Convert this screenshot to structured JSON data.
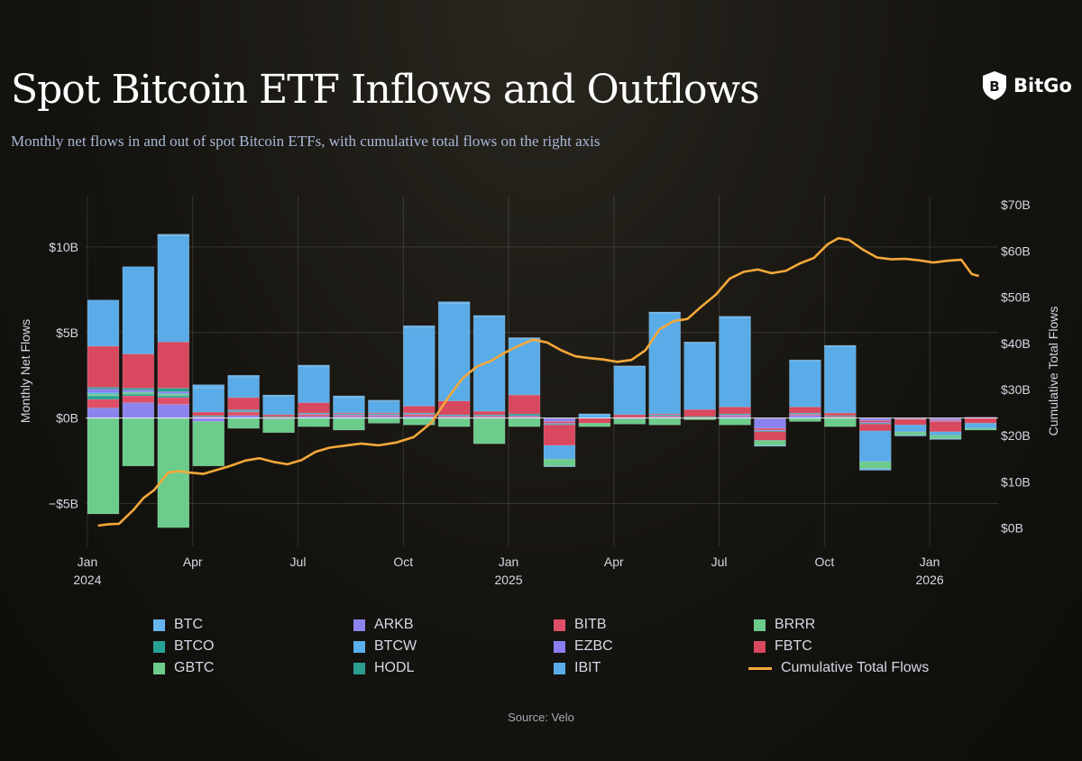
{
  "header": {
    "title": "Spot Bitcoin ETF Inflows and Outflows",
    "subtitle": "Monthly net flows in and out of spot Bitcoin ETFs, with cumulative total flows on the right axis",
    "logo_text": "BitGo"
  },
  "source": "Source: Velo",
  "colors": {
    "BTC": "#67b5ee",
    "ARKB": "#8c84ee",
    "BITB": "#df4f67",
    "BRRR": "#6ccc8c",
    "BTCO": "#28a296",
    "BTCW": "#5ab0ec",
    "EZBC": "#8a7ef0",
    "FBTC": "#d8485e",
    "GBTC": "#6ccc8c",
    "HODL": "#2a9d8f",
    "IBIT": "#5aace8",
    "cumulative": "#f4a83a"
  },
  "chart_data": {
    "type": "bar",
    "stacked": true,
    "title": "Spot Bitcoin ETF Inflows and Outflows",
    "ylabel": "Monthly Net Flows",
    "y2label": "Cumulative Total Flows",
    "ylim": [
      -7.5,
      13.0
    ],
    "y2lim": [
      -4.0,
      72.0
    ],
    "yticks": [
      {
        "v": 10,
        "label": "$10B"
      },
      {
        "v": 5,
        "label": "$5B"
      },
      {
        "v": 0,
        "label": "$0B"
      },
      {
        "v": -5,
        "label": "−$5B"
      }
    ],
    "y2ticks": [
      {
        "v": 70,
        "label": "$70B"
      },
      {
        "v": 60,
        "label": "$60B"
      },
      {
        "v": 50,
        "label": "$50B"
      },
      {
        "v": 40,
        "label": "$40B"
      },
      {
        "v": 30,
        "label": "$30B"
      },
      {
        "v": 20,
        "label": "$20B"
      },
      {
        "v": 10,
        "label": "$10B"
      },
      {
        "v": 0,
        "label": "$0B"
      }
    ],
    "xticks": [
      {
        "m": 0,
        "line1": "Jan",
        "line2": "2024"
      },
      {
        "m": 3,
        "line1": "Apr",
        "line2": ""
      },
      {
        "m": 6,
        "line1": "Jul",
        "line2": ""
      },
      {
        "m": 9,
        "line1": "Oct",
        "line2": ""
      },
      {
        "m": 12,
        "line1": "Jan",
        "line2": "2025"
      },
      {
        "m": 15,
        "line1": "Apr",
        "line2": ""
      },
      {
        "m": 18,
        "line1": "Jul",
        "line2": ""
      },
      {
        "m": 21,
        "line1": "Oct",
        "line2": ""
      },
      {
        "m": 24,
        "line1": "Jan",
        "line2": "2026"
      }
    ],
    "grid": true,
    "legend_position": "bottom",
    "months": [
      "Jan 2024",
      "Feb 2024",
      "Mar 2024",
      "Apr 2024",
      "May 2024",
      "Jun 2024",
      "Jul 2024",
      "Aug 2024",
      "Sep 2024",
      "Oct 2024",
      "Nov 2024",
      "Dec 2024",
      "Jan 2025",
      "Feb 2025",
      "Mar 2025",
      "Apr 2025",
      "May 2025",
      "Jun 2025",
      "Jul 2025",
      "Aug 2025",
      "Sep 2025",
      "Oct 2025",
      "Nov 2025",
      "Dec 2025",
      "Jan 2026",
      "Feb 2026"
    ],
    "series": [
      {
        "name": "ARKB",
        "values": [
          0.6,
          0.9,
          0.8,
          -0.2,
          0.15,
          -0.05,
          0.1,
          0.1,
          0.1,
          0.1,
          0.05,
          0.05,
          0.05,
          -0.2,
          0,
          -0.05,
          0.05,
          0,
          0.1,
          -0.6,
          0.15,
          0.05,
          -0.15,
          -0.05,
          -0.1,
          0.05
        ]
      },
      {
        "name": "BITB",
        "values": [
          0.5,
          0.4,
          0.4,
          0.05,
          0.2,
          0.05,
          0.1,
          0.05,
          0.05,
          0.1,
          0.05,
          0.05,
          0.05,
          -0.1,
          0,
          0.05,
          0.05,
          0.05,
          0.05,
          -0.1,
          0.05,
          0.05,
          -0.1,
          -0.05,
          -0.05,
          0
        ]
      },
      {
        "name": "BTCO",
        "values": [
          0.2,
          0.1,
          0.1,
          0,
          0.05,
          0,
          0,
          0,
          0,
          0,
          0,
          0,
          0,
          0,
          0,
          0,
          0,
          0,
          0,
          0,
          0,
          0,
          0,
          0,
          0,
          0
        ]
      },
      {
        "name": "BRRR",
        "values": [
          0.1,
          0.1,
          0.1,
          0,
          0,
          0,
          0,
          0,
          0,
          0,
          0,
          0,
          0,
          0,
          0,
          0,
          0,
          0,
          0,
          0,
          0,
          0,
          0,
          0,
          0,
          0
        ]
      },
      {
        "name": "BTCW",
        "values": [
          0.1,
          0.05,
          0.05,
          0,
          0,
          0,
          0,
          0,
          0,
          0,
          0,
          0,
          0,
          0,
          0,
          0,
          0,
          0,
          0,
          0,
          0,
          0,
          0,
          0,
          0,
          0
        ]
      },
      {
        "name": "EZBC",
        "values": [
          0.2,
          0.1,
          0.1,
          0.05,
          0.05,
          0,
          0.05,
          0.05,
          0.05,
          0.05,
          0.05,
          0.05,
          0.05,
          -0.05,
          0,
          0,
          0.05,
          0,
          0.05,
          -0.05,
          0.05,
          0,
          -0.05,
          0,
          -0.05,
          0
        ]
      },
      {
        "name": "HODL",
        "values": [
          0.1,
          0.1,
          0.2,
          0.05,
          0.05,
          0.05,
          0.05,
          0.05,
          0.05,
          0.05,
          0.05,
          0.05,
          0.1,
          -0.05,
          0,
          0,
          0.05,
          0.05,
          0.05,
          -0.05,
          0.05,
          0.05,
          -0.05,
          0,
          0,
          0
        ]
      },
      {
        "name": "FBTC",
        "values": [
          2.4,
          2.0,
          2.7,
          0.2,
          0.7,
          0.1,
          0.6,
          0.05,
          0.05,
          0.4,
          0.8,
          0.2,
          1.1,
          -1.2,
          -0.3,
          0.15,
          0.05,
          0.4,
          0.4,
          -0.5,
          0.35,
          0.15,
          -0.4,
          -0.3,
          -0.6,
          -0.3
        ]
      },
      {
        "name": "IBIT",
        "values": [
          2.7,
          5.1,
          6.2,
          1.4,
          1.2,
          1.1,
          2.1,
          0.9,
          0.7,
          4.6,
          5.7,
          5.5,
          3.3,
          -0.8,
          0.2,
          2.8,
          5.9,
          3.9,
          5.2,
          0,
          2.7,
          3.9,
          -1.8,
          -0.4,
          -0.2,
          -0.3
        ]
      },
      {
        "name": "GBTC",
        "values": [
          -5.6,
          -2.8,
          -6.4,
          -2.6,
          -0.6,
          -0.8,
          -0.5,
          -0.7,
          -0.3,
          -0.4,
          -0.5,
          -1.5,
          -0.5,
          -0.4,
          -0.2,
          -0.3,
          -0.4,
          -0.1,
          -0.4,
          -0.3,
          -0.2,
          -0.5,
          -0.4,
          -0.2,
          -0.2,
          -0.1
        ]
      },
      {
        "name": "BTC",
        "values": [
          0,
          0,
          0.1,
          0.2,
          0.1,
          0.05,
          0.1,
          0.1,
          0.05,
          0.1,
          0.1,
          0.1,
          0.05,
          -0.05,
          0.05,
          0.05,
          0.05,
          0.05,
          0.1,
          -0.05,
          0.05,
          0.05,
          -0.1,
          -0.05,
          -0.05,
          0
        ]
      }
    ],
    "cumulative": {
      "name": "Cumulative Total Flows",
      "points": [
        [
          0,
          0.5
        ],
        [
          0.3,
          0.8
        ],
        [
          0.6,
          0.9
        ],
        [
          1,
          3.8
        ],
        [
          1.3,
          6.5
        ],
        [
          1.6,
          8.2
        ],
        [
          2,
          12.0
        ],
        [
          2.3,
          12.3
        ],
        [
          2.6,
          12.0
        ],
        [
          3,
          11.7
        ],
        [
          3.4,
          12.6
        ],
        [
          3.8,
          13.5
        ],
        [
          4.2,
          14.6
        ],
        [
          4.6,
          15.1
        ],
        [
          5,
          14.3
        ],
        [
          5.4,
          13.8
        ],
        [
          5.8,
          14.7
        ],
        [
          6.2,
          16.5
        ],
        [
          6.6,
          17.4
        ],
        [
          7,
          17.8
        ],
        [
          7.5,
          18.3
        ],
        [
          8,
          17.9
        ],
        [
          8.5,
          18.5
        ],
        [
          9,
          19.7
        ],
        [
          9.5,
          22.8
        ],
        [
          10,
          28.5
        ],
        [
          10.4,
          32.5
        ],
        [
          10.8,
          35.0
        ],
        [
          11.2,
          36.2
        ],
        [
          11.6,
          38.0
        ],
        [
          12,
          39.5
        ],
        [
          12.4,
          40.8
        ],
        [
          12.8,
          40.2
        ],
        [
          13.2,
          38.5
        ],
        [
          13.6,
          37.2
        ],
        [
          14,
          36.8
        ],
        [
          14.4,
          36.5
        ],
        [
          14.8,
          36.0
        ],
        [
          15.2,
          36.4
        ],
        [
          15.6,
          38.5
        ],
        [
          16,
          43.0
        ],
        [
          16.4,
          44.8
        ],
        [
          16.8,
          45.3
        ],
        [
          17.2,
          48.0
        ],
        [
          17.6,
          50.5
        ],
        [
          18,
          54.0
        ],
        [
          18.4,
          55.5
        ],
        [
          18.8,
          56.0
        ],
        [
          19.2,
          55.2
        ],
        [
          19.6,
          55.7
        ],
        [
          20,
          57.3
        ],
        [
          20.4,
          58.5
        ],
        [
          20.8,
          61.5
        ],
        [
          21.1,
          62.8
        ],
        [
          21.4,
          62.4
        ],
        [
          21.8,
          60.3
        ],
        [
          22.2,
          58.6
        ],
        [
          22.6,
          58.2
        ],
        [
          23,
          58.3
        ],
        [
          23.4,
          58.0
        ],
        [
          23.8,
          57.5
        ],
        [
          24.2,
          57.9
        ],
        [
          24.6,
          58.1
        ],
        [
          24.9,
          55.0
        ],
        [
          25.1,
          54.6
        ]
      ]
    }
  },
  "legend": {
    "items": [
      {
        "key": "BTC",
        "label": "BTC"
      },
      {
        "key": "ARKB",
        "label": "ARKB"
      },
      {
        "key": "BITB",
        "label": "BITB"
      },
      {
        "key": "BRRR",
        "label": "BRRR"
      },
      {
        "key": "BTCO",
        "label": "BTCO"
      },
      {
        "key": "BTCW",
        "label": "BTCW"
      },
      {
        "key": "EZBC",
        "label": "EZBC"
      },
      {
        "key": "FBTC",
        "label": "FBTC"
      },
      {
        "key": "GBTC",
        "label": "GBTC"
      },
      {
        "key": "HODL",
        "label": "HODL"
      },
      {
        "key": "IBIT",
        "label": "IBIT"
      }
    ],
    "line_label": "Cumulative Total Flows"
  }
}
